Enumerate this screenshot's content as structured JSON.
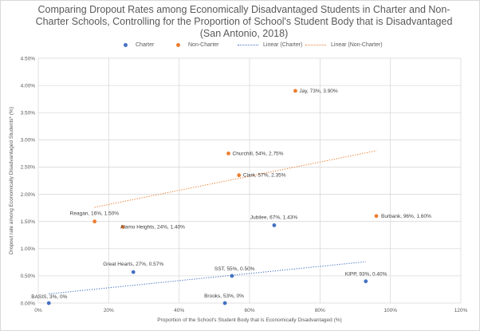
{
  "chart_data": {
    "type": "scatter",
    "title": "Comparing Dropout Rates among Economically Disadvantaged Students in Charter and Non-Charter Schools, Controlling for the Proportion of School's Student Body that is Disadvantaged (San Antonio, 2018)",
    "xlabel": "Proportion of the School's Student Body that is Economically Disadvantaged (%)",
    "ylabel": "Dropout rate among Economically Disadvantaged Students* (%)",
    "xlim": [
      0,
      120
    ],
    "ylim": [
      0,
      4.5
    ],
    "x_ticks": [
      "0%",
      "20%",
      "40%",
      "60%",
      "80%",
      "100%",
      "120%"
    ],
    "y_ticks": [
      "0.00%",
      "0.50%",
      "1.00%",
      "1.50%",
      "2.00%",
      "2.50%",
      "3.00%",
      "3.50%",
      "4.00%",
      "4.50%"
    ],
    "grid": true,
    "legend_position": "top",
    "legend": [
      "Charter",
      "Non-Charter",
      "Linear (Charter)",
      "Linear (Non-Charter)"
    ],
    "colors": {
      "charter": "#4472c4",
      "non_charter": "#ed7d31"
    },
    "series": [
      {
        "name": "Charter",
        "points": [
          {
            "x": 3,
            "y": 0,
            "label": "BASIS, 3%, 0%"
          },
          {
            "x": 27,
            "y": 0.57,
            "label": "Great Hearts, 27%, 0.57%"
          },
          {
            "x": 53,
            "y": 0,
            "label": "Brooks, 53%, 0%"
          },
          {
            "x": 55,
            "y": 0.5,
            "label": "SST, 55%, 0.50%"
          },
          {
            "x": 67,
            "y": 1.43,
            "label": "Jubilee, 67%, 1.43%"
          },
          {
            "x": 93,
            "y": 0.4,
            "label": "KIPP, 93%, 0.40%"
          }
        ]
      },
      {
        "name": "Non-Charter",
        "points": [
          {
            "x": 16,
            "y": 1.5,
            "label": "Reagan, 16%, 1.50%"
          },
          {
            "x": 24,
            "y": 1.4,
            "label": "Alamo Heights, 24%, 1.40%"
          },
          {
            "x": 54,
            "y": 2.75,
            "label": "Churchill, 54%, 2.75%"
          },
          {
            "x": 57,
            "y": 2.35,
            "label": "Clark, 57%, 2.35%"
          },
          {
            "x": 73,
            "y": 3.9,
            "label": "Jay, 73%, 3.90%"
          },
          {
            "x": 96,
            "y": 1.6,
            "label": "Burbank, 96%, 1.60%"
          }
        ]
      }
    ],
    "trendlines": [
      {
        "name": "Linear (Charter)",
        "x": [
          3,
          93
        ],
        "y": [
          0.17,
          0.76
        ]
      },
      {
        "name": "Linear (Non-Charter)",
        "x": [
          16,
          96
        ],
        "y": [
          1.76,
          2.8
        ]
      }
    ]
  }
}
